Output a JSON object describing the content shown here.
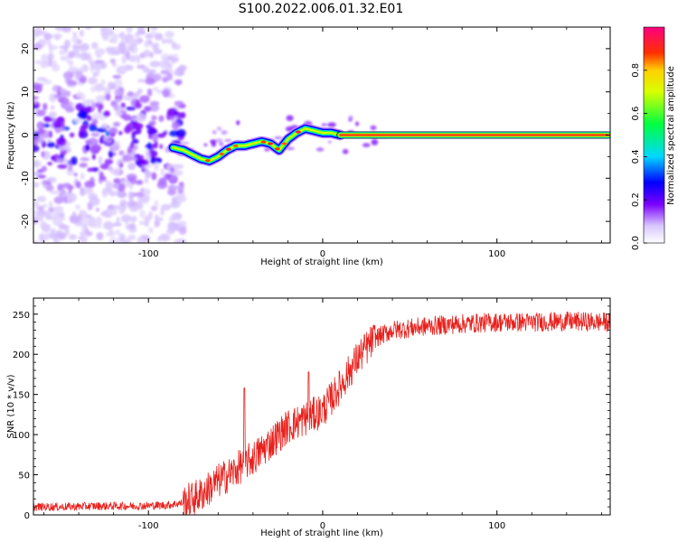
{
  "figure_title": "S100.2022.006.01.32.E01",
  "chart_data": [
    {
      "type": "heatmap",
      "title": "",
      "xlabel": "Height of straight line (km)",
      "ylabel": "Frequency (Hz)",
      "xlim": [
        -166,
        165
      ],
      "ylim": [
        -25,
        25
      ],
      "xticks": [
        -100,
        0,
        100
      ],
      "yticks": [
        -20,
        -10,
        0,
        10,
        20
      ],
      "colorbar": {
        "label": "Normalized spectral amplitude",
        "range": [
          0,
          1
        ],
        "ticks": [
          0.0,
          0.2,
          0.4,
          0.6,
          0.8
        ],
        "tick_labels": [
          "0.0",
          "0.2",
          "0.4",
          "0.6",
          "0.8"
        ],
        "colors": [
          "#ffffff",
          "#8000ff",
          "#0000ff",
          "#00e0ff",
          "#00ff40",
          "#ffff00",
          "#ff4000",
          "#ff0080"
        ]
      },
      "description_ridge": {
        "x": [
          -85,
          -80,
          -75,
          -70,
          -65,
          -60,
          -55,
          -50,
          -45,
          -40,
          -35,
          -30,
          -25,
          -20,
          -15,
          -10,
          -5,
          0,
          5,
          10,
          20,
          40,
          80,
          120,
          165
        ],
        "y": [
          -3.0,
          -3.5,
          -4.5,
          -5.5,
          -6.0,
          -5.0,
          -3.5,
          -2.5,
          -2.5,
          -2.0,
          -1.5,
          -2.0,
          -3.5,
          -1.0,
          0.5,
          1.5,
          1.0,
          0.5,
          0.5,
          0.0,
          0.0,
          0.0,
          0.0,
          0.0,
          0.0
        ]
      },
      "noise_region": {
        "x_range": [
          -166,
          -80
        ],
        "y_range": [
          -25,
          25
        ]
      }
    },
    {
      "type": "line",
      "title": "",
      "xlabel": "Height of straight line (km)",
      "ylabel": "SNR (10 * v/v)",
      "xlim": [
        -166,
        165
      ],
      "ylim": [
        0,
        270
      ],
      "xticks": [
        -100,
        0,
        100
      ],
      "yticks": [
        0,
        50,
        100,
        150,
        200,
        250
      ],
      "color": "#e8201c",
      "x": [
        -166,
        -150,
        -130,
        -110,
        -90,
        -80,
        -70,
        -60,
        -50,
        -45,
        -40,
        -30,
        -20,
        -10,
        0,
        10,
        20,
        30,
        40,
        60,
        80,
        100,
        120,
        140,
        165
      ],
      "values": [
        10,
        10,
        11,
        11,
        12,
        15,
        25,
        42,
        55,
        65,
        70,
        90,
        110,
        120,
        130,
        160,
        195,
        220,
        230,
        235,
        238,
        240,
        240,
        241,
        240
      ],
      "spikes": [
        {
          "x": -45,
          "y": 158
        },
        {
          "x": -8,
          "y": 178
        }
      ]
    }
  ]
}
